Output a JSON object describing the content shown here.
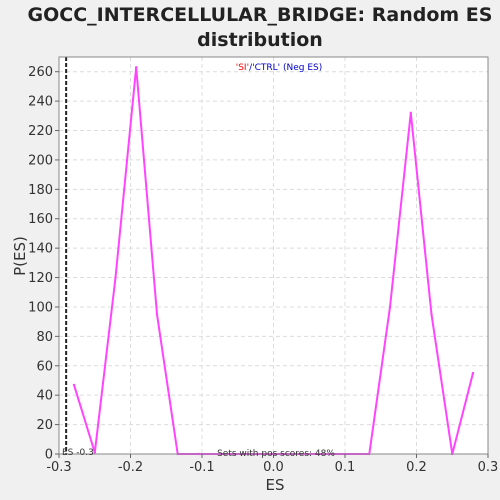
{
  "chart_data": {
    "type": "line",
    "title_line1": "GOCC_INTERCELLULAR_BRIDGE: Random ES",
    "title_line2": "distribution",
    "xlabel": "ES",
    "ylabel": "P(ES)",
    "xlim": [
      -0.3,
      0.3
    ],
    "ylim": [
      0,
      270
    ],
    "x_ticks": [
      -0.3,
      -0.2,
      -0.1,
      0.0,
      0.1,
      0.2,
      0.3
    ],
    "x_tick_labels": [
      "-0.3",
      "-0.2",
      "-0.1",
      "0.0",
      "0.1",
      "0.2",
      "0.3"
    ],
    "y_ticks": [
      0,
      20,
      40,
      60,
      80,
      100,
      120,
      140,
      160,
      180,
      200,
      220,
      240,
      260
    ],
    "y_tick_labels": [
      "0",
      "20",
      "40",
      "60",
      "80",
      "100",
      "120",
      "140",
      "160",
      "180",
      "200",
      "220",
      "240",
      "260"
    ],
    "grid": true,
    "series": [
      {
        "color": "#ff44ff",
        "x": [
          -0.279,
          -0.25,
          -0.221,
          -0.192,
          -0.163,
          -0.134,
          -0.105,
          0.134,
          0.163,
          0.192,
          0.221,
          0.25,
          0.279
        ],
        "values": [
          47,
          1,
          120,
          263,
          95,
          0,
          0,
          0,
          100,
          232,
          95,
          0,
          55
        ]
      }
    ],
    "es_marker": {
      "x": -0.29,
      "label": "ES -0.3"
    },
    "legend": {
      "label_parts": [
        "'SI'",
        "'CTRL'",
        " (Neg ES)"
      ],
      "separator": "/",
      "part_colors": [
        "#ff0000",
        "#0000cc",
        "#0000cc"
      ],
      "placement": "top-center"
    },
    "annotation": "Sets with pos scores: 48%"
  }
}
